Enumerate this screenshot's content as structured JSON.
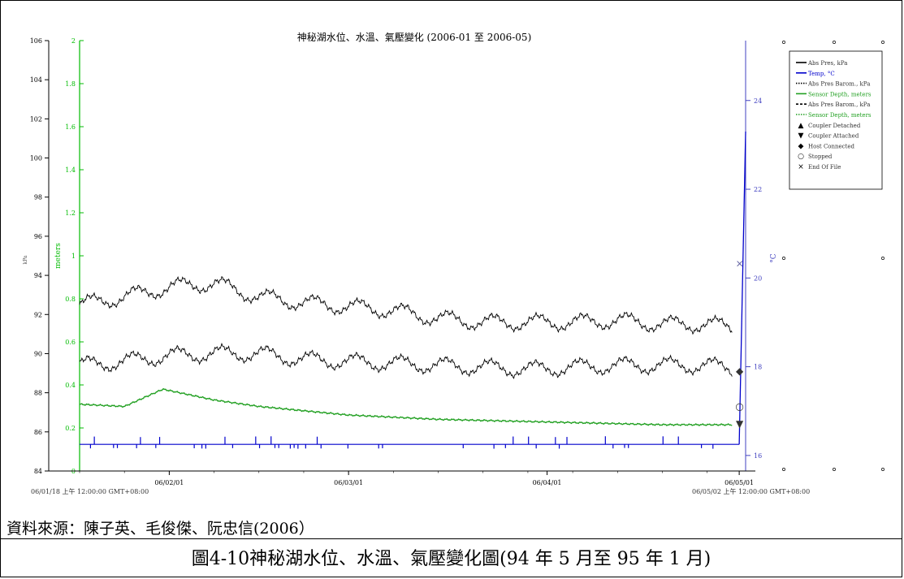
{
  "caption": {
    "source": "資料來源：陳子英、毛俊傑、阮忠信(2006）",
    "figure_caption": "圖4-10神秘湖水位、水溫、氣壓變化圖(94 年 5 月至 95 年 1 月)"
  },
  "chart_data": {
    "type": "line",
    "title": "神秘湖水位、水溫、氣壓變化 (2006-01 至 2006-05)",
    "x_start_label": "06/01/18 上午 12:00:00 GMT+08:00",
    "x_end_label": "06/05/02 上午 12:00:00 GMT+08:00",
    "x_tick_labels": [
      "06/02/01",
      "06/03/01",
      "06/04/01",
      "06/05/01"
    ],
    "x_range": [
      "2006-01-18",
      "2006-05-02"
    ],
    "y_left": {
      "label": "kPa",
      "range": [
        84,
        106
      ],
      "ticks": [
        84,
        86,
        88,
        90,
        92,
        94,
        96,
        98,
        100,
        102,
        104,
        106
      ]
    },
    "y_meters": {
      "label": "meters",
      "range": [
        0,
        2
      ],
      "ticks": [
        0,
        0.2,
        0.4,
        0.6,
        0.8,
        1,
        1.2,
        1.4,
        1.6,
        1.8,
        2
      ]
    },
    "y_right": {
      "label": "°C",
      "range": [
        15.65,
        25.35
      ],
      "ticks": [
        16,
        18,
        20,
        22,
        24
      ]
    },
    "grid": false,
    "legend_position": "top-right",
    "colors": {
      "black": "#000000",
      "blue": "#0000cc",
      "green": "#22a022",
      "axis_green": "#00bb00"
    },
    "series": [
      {
        "name": "Abs Pres, kPa",
        "axis": "kPa",
        "color": "#000000",
        "style": "solid",
        "x": [
          "2006-01-18",
          "2006-01-25",
          "2006-02-01",
          "2006-02-08",
          "2006-02-15",
          "2006-02-22",
          "2006-03-01",
          "2006-03-08",
          "2006-03-15",
          "2006-03-22",
          "2006-03-29",
          "2006-04-05",
          "2006-04-12",
          "2006-04-19",
          "2006-04-26",
          "2006-05-01"
        ],
        "values": [
          92.5,
          92.9,
          93.4,
          93.6,
          92.9,
          92.6,
          92.4,
          92.2,
          91.8,
          91.6,
          91.6,
          91.6,
          91.7,
          91.5,
          91.5,
          91.3
        ]
      },
      {
        "name": "Abs Pres Barom., kPa",
        "axis": "kPa",
        "color": "#000000",
        "style": "dotted",
        "x": [
          "2006-01-18",
          "2006-01-25",
          "2006-02-01",
          "2006-02-08",
          "2006-02-15",
          "2006-02-22",
          "2006-03-01",
          "2006-03-08",
          "2006-03-15",
          "2006-03-22",
          "2006-03-29",
          "2006-04-05",
          "2006-04-12",
          "2006-04-19",
          "2006-04-26",
          "2006-05-01"
        ],
        "values": [
          89.4,
          89.6,
          89.9,
          90.0,
          90.0,
          89.7,
          89.6,
          89.5,
          89.4,
          89.3,
          89.2,
          89.3,
          89.4,
          89.4,
          89.4,
          89.2
        ]
      },
      {
        "name": "Sensor Depth, meters",
        "axis": "meters",
        "color": "#22a022",
        "style": "solid",
        "x": [
          "2006-01-18",
          "2006-01-25",
          "2006-01-31",
          "2006-02-08",
          "2006-02-15",
          "2006-02-22",
          "2006-03-01",
          "2006-03-08",
          "2006-03-15",
          "2006-03-22",
          "2006-03-29",
          "2006-04-05",
          "2006-04-12",
          "2006-04-19",
          "2006-04-26",
          "2006-05-01"
        ],
        "values": [
          0.31,
          0.3,
          0.38,
          0.33,
          0.3,
          0.28,
          0.26,
          0.25,
          0.24,
          0.235,
          0.23,
          0.225,
          0.22,
          0.215,
          0.215,
          0.215
        ]
      },
      {
        "name": "Temp, °C",
        "axis": "°C",
        "color": "#0000cc",
        "style": "solid",
        "x": [
          "2006-01-18",
          "2006-02-01",
          "2006-03-01",
          "2006-04-01",
          "2006-05-01",
          "2006-05-02"
        ],
        "values": [
          16.25,
          16.25,
          16.25,
          16.25,
          16.25,
          23.3
        ]
      }
    ],
    "legend": [
      {
        "label": "Abs Pres, kPa",
        "color": "#000000",
        "marker": "line-solid"
      },
      {
        "label": "Temp, °C",
        "color": "#0000cc",
        "marker": "line-solid"
      },
      {
        "label": "Abs Pres Barom., kPa",
        "color": "#000000",
        "marker": "line-dotted"
      },
      {
        "label": "Sensor Depth, meters",
        "color": "#22a022",
        "marker": "line-solid"
      },
      {
        "label": "Abs Pres Barom., kPa",
        "color": "#000000",
        "marker": "line-dashed"
      },
      {
        "label": "Sensor Depth, meters",
        "color": "#22a022",
        "marker": "line-dotted"
      },
      {
        "label": "Coupler Detached",
        "color": "#000000",
        "marker": "▲"
      },
      {
        "label": "Coupler Attached",
        "color": "#000000",
        "marker": "▼"
      },
      {
        "label": "Host Connected",
        "color": "#000000",
        "marker": "◆"
      },
      {
        "label": "Stopped",
        "color": "#000000",
        "marker": "○"
      },
      {
        "label": "End Of File",
        "color": "#000000",
        "marker": "×"
      }
    ],
    "event_markers": [
      {
        "type": "End Of File",
        "symbol": "×",
        "x": "2006-05-01",
        "axis": "kPa",
        "value": 94.6
      },
      {
        "type": "Host Connected",
        "symbol": "◆",
        "x": "2006-05-01",
        "axis": "kPa",
        "value": 89.1
      },
      {
        "type": "Stopped",
        "symbol": "○",
        "x": "2006-05-01",
        "axis": "kPa",
        "value": 87.3
      },
      {
        "type": "Coupler Attached",
        "symbol": "▼",
        "x": "2006-05-01",
        "axis": "kPa",
        "value": 86.4
      }
    ]
  }
}
